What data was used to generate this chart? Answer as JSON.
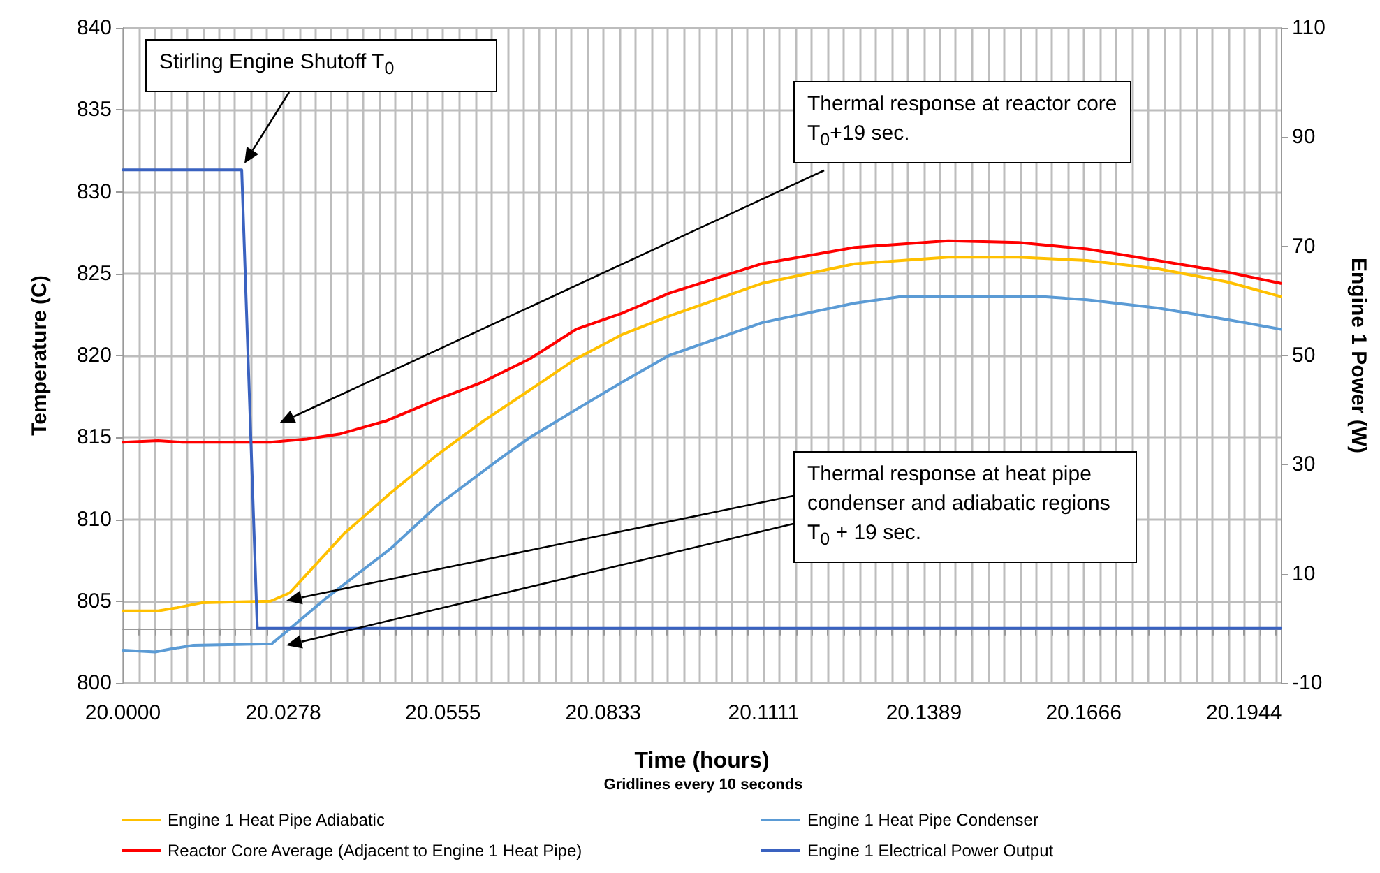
{
  "chart_data": {
    "type": "line",
    "xlabel": "Time (hours)",
    "ylabel": "Temperature (C)",
    "y2label": "Engine 1 Power (W)",
    "xlim": [
      20,
      20.2008
    ],
    "ylim": [
      800,
      840
    ],
    "y2lim": [
      -10,
      110
    ],
    "xticks": [
      {
        "value": 20,
        "label": "20.0000"
      },
      {
        "value": 20.0028,
        "label": null
      },
      {
        "value": 20.0056,
        "label": null
      },
      {
        "value": 20.0083,
        "label": null
      },
      {
        "value": 20.0111,
        "label": null
      },
      {
        "value": 20.0139,
        "label": null
      },
      {
        "value": 20.0167,
        "label": null
      },
      {
        "value": 20.0194,
        "label": null
      },
      {
        "value": 20.0222,
        "label": null
      },
      {
        "value": 20.025,
        "label": null
      },
      20.0278,
      {
        "value": 20.0306,
        "label": null
      },
      {
        "value": 20.0333,
        "label": null
      },
      {
        "value": 20.0361,
        "label": null
      },
      {
        "value": 20.0389,
        "label": null
      },
      {
        "value": 20.0417,
        "label": null
      },
      {
        "value": 20.0444,
        "label": null
      },
      {
        "value": 20.0472,
        "label": null
      },
      {
        "value": 20.05,
        "label": null
      },
      {
        "value": 20.0528,
        "label": null
      },
      20.0555,
      {
        "value": 20.0583,
        "label": null
      },
      {
        "value": 20.0611,
        "label": null
      },
      {
        "value": 20.0639,
        "label": null
      },
      {
        "value": 20.0667,
        "label": null
      },
      {
        "value": 20.0694,
        "label": null
      },
      {
        "value": 20.0722,
        "label": null
      },
      {
        "value": 20.075,
        "label": null
      },
      {
        "value": 20.0778,
        "label": null
      },
      {
        "value": 20.0806,
        "label": null
      },
      20.0833,
      {
        "value": 20.0861,
        "label": null
      },
      {
        "value": 20.0889,
        "label": null
      },
      {
        "value": 20.0917,
        "label": null
      },
      {
        "value": 20.0944,
        "label": null
      },
      {
        "value": 20.0972,
        "label": null
      },
      {
        "value": 20.1,
        "label": null
      },
      {
        "value": 20.1028,
        "label": null
      },
      {
        "value": 20.1056,
        "label": null
      },
      {
        "value": 20.1083,
        "label": null
      },
      20.1111,
      {
        "value": 20.1139,
        "label": null
      },
      {
        "value": 20.1167,
        "label": null
      },
      {
        "value": 20.1194,
        "label": null
      },
      {
        "value": 20.1222,
        "label": null
      },
      {
        "value": 20.125,
        "label": null
      },
      {
        "value": 20.1278,
        "label": null
      },
      {
        "value": 20.1306,
        "label": null
      },
      {
        "value": 20.1333,
        "label": null
      },
      {
        "value": 20.1361,
        "label": null
      },
      20.1389,
      {
        "value": 20.1417,
        "label": null
      },
      {
        "value": 20.1444,
        "label": null
      },
      {
        "value": 20.1472,
        "label": null
      },
      {
        "value": 20.15,
        "label": null
      },
      {
        "value": 20.1528,
        "label": null
      },
      {
        "value": 20.1556,
        "label": null
      },
      {
        "value": 20.1583,
        "label": null
      },
      {
        "value": 20.1611,
        "label": null
      },
      {
        "value": 20.1639,
        "label": null
      },
      20.1666,
      {
        "value": 20.1694,
        "label": null
      },
      {
        "value": 20.1722,
        "label": null
      },
      {
        "value": 20.175,
        "label": null
      },
      {
        "value": 20.1778,
        "label": null
      },
      {
        "value": 20.1806,
        "label": null
      },
      {
        "value": 20.1833,
        "label": null
      },
      {
        "value": 20.1861,
        "label": null
      },
      {
        "value": 20.1889,
        "label": null
      },
      {
        "value": 20.1917,
        "label": null
      },
      20.1944,
      {
        "value": 20.1972,
        "label": null
      },
      {
        "value": 20.2,
        "label": null
      }
    ],
    "yticks": [
      800,
      805,
      810,
      815,
      820,
      825,
      830,
      835,
      840
    ],
    "y2ticks": [
      -10,
      10,
      30,
      50,
      70,
      90,
      110
    ],
    "grid": true,
    "legend": "bottom",
    "marker": "none",
    "line_style": "solid",
    "series": [
      {
        "name": "Engine 1 Heat Pipe Adiabatic",
        "color": "#ffc000",
        "x": [
          20,
          20.0061,
          20.0094,
          20.0136,
          20.0256,
          20.0289,
          20.0383,
          20.0464,
          20.0544,
          20.0625,
          20.0706,
          20.0786,
          20.0867,
          20.0947,
          20.1108,
          20.1269,
          20.1431,
          20.1553,
          20.1672,
          20.1794,
          20.1914,
          20.2008
        ],
        "values": [
          804.4,
          804.4,
          804.6,
          804.9,
          805.0,
          805.5,
          809.1,
          811.6,
          813.9,
          816.0,
          817.9,
          819.8,
          821.3,
          822.4,
          824.4,
          825.6,
          826.0,
          826.0,
          825.8,
          825.3,
          824.5,
          823.6
        ]
      },
      {
        "name": "Engine 1 Heat Pipe Condenser",
        "color": "#5b9bd5",
        "x": [
          20,
          20.0056,
          20.0086,
          20.0122,
          20.0258,
          20.0289,
          20.0353,
          20.0464,
          20.0544,
          20.065,
          20.0706,
          20.0786,
          20.0867,
          20.0947,
          20.1108,
          20.1269,
          20.135,
          20.1592,
          20.1672,
          20.1794,
          20.1914,
          20.2008
        ],
        "values": [
          802.0,
          801.9,
          802.1,
          802.3,
          802.4,
          803.3,
          805.2,
          808.2,
          810.8,
          813.6,
          815.0,
          816.7,
          818.4,
          820.0,
          822.0,
          823.2,
          823.6,
          823.6,
          823.4,
          822.9,
          822.2,
          821.6
        ]
      },
      {
        "name": "Reactor Core Average (Adjacent to Engine 1 Heat Pipe)",
        "color": "#ff0000",
        "x": [
          20,
          20.0061,
          20.0103,
          20.0256,
          20.0319,
          20.0375,
          20.0456,
          20.0544,
          20.0625,
          20.0706,
          20.0786,
          20.0867,
          20.0947,
          20.1108,
          20.1269,
          20.1431,
          20.1553,
          20.1672,
          20.1794,
          20.1914,
          20.2008
        ],
        "values": [
          814.7,
          814.8,
          814.7,
          814.7,
          814.9,
          815.2,
          816.0,
          817.3,
          818.4,
          819.8,
          821.6,
          822.6,
          823.8,
          825.6,
          826.6,
          827.0,
          826.9,
          826.5,
          825.8,
          825.1,
          824.4
        ]
      },
      {
        "name": "Engine 1 Electrical Power Output",
        "color": "#3a62c0",
        "axis": "y2",
        "x": [
          20,
          20.0206,
          20.0233,
          20.2008
        ],
        "values": [
          84,
          84,
          0,
          0
        ]
      }
    ],
    "annotations": [
      "Stirling Engine Shutoff T$_{0}$",
      "Thermal response at reactor core T$_{0}$+19 sec.",
      "Thermal response at heat pipe condenser and adiabatic regions T$_{0}$ + 19 sec.",
      "Gridlines every 10 seconds"
    ]
  }
}
